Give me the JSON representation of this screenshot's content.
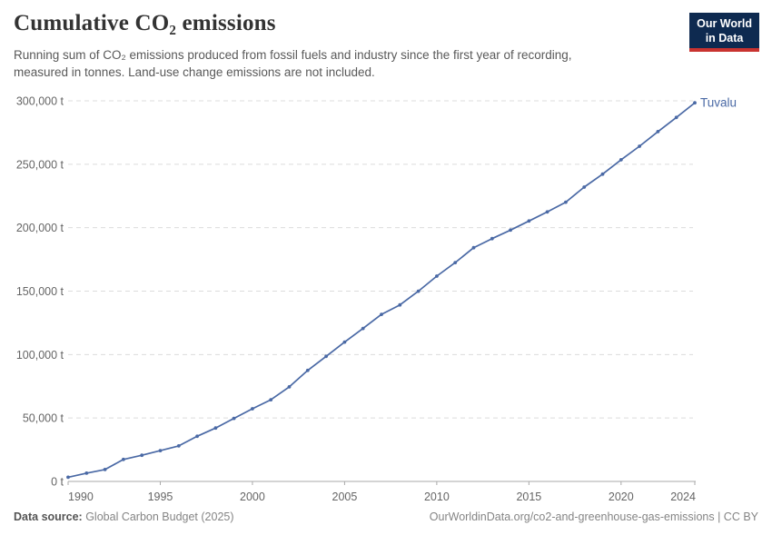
{
  "header": {
    "title": "Cumulative CO₂ emissions",
    "subtitle": "Running sum of CO₂ emissions produced from fossil fuels and industry since the first year of recording,\nmeasured in tonnes. Land-use change emissions are not included."
  },
  "logo": {
    "line1": "Our World",
    "line2": "in Data"
  },
  "chart_data": {
    "type": "line",
    "title": "Cumulative CO₂ emissions",
    "entity": "Tuvalu",
    "unit": "t",
    "xlabel": "",
    "ylabel": "",
    "xlim": [
      1990,
      2024
    ],
    "ylim": [
      0,
      300000
    ],
    "grid": "horizontal-dashed",
    "legend_position": "end-of-line-label",
    "line_color": "#4a69a5",
    "x": [
      1990,
      1991,
      1992,
      1993,
      1994,
      1995,
      1996,
      1997,
      1998,
      1999,
      2000,
      2001,
      2002,
      2003,
      2004,
      2005,
      2006,
      2007,
      2008,
      2009,
      2010,
      2011,
      2012,
      2013,
      2014,
      2015,
      2016,
      2017,
      2018,
      2019,
      2020,
      2021,
      2022,
      2023,
      2024
    ],
    "y": [
      3300,
      6500,
      9400,
      17300,
      20600,
      24300,
      28000,
      35600,
      42100,
      49700,
      57300,
      64400,
      74500,
      87500,
      98600,
      109800,
      120600,
      131700,
      139100,
      149900,
      161800,
      172500,
      184200,
      191400,
      198100,
      205300,
      212400,
      220100,
      232000,
      242200,
      253500,
      264200,
      275700,
      286900,
      298400
    ],
    "y_ticks": [
      {
        "value": 0,
        "label": "0 t"
      },
      {
        "value": 50000,
        "label": "50,000 t"
      },
      {
        "value": 100000,
        "label": "100,000 t"
      },
      {
        "value": 150000,
        "label": "150,000 t"
      },
      {
        "value": 200000,
        "label": "200,000 t"
      },
      {
        "value": 250000,
        "label": "250,000 t"
      },
      {
        "value": 300000,
        "label": "300,000 t"
      }
    ],
    "x_ticks": [
      {
        "value": 1990,
        "label": "1990"
      },
      {
        "value": 1995,
        "label": "1995"
      },
      {
        "value": 2000,
        "label": "2000"
      },
      {
        "value": 2005,
        "label": "2005"
      },
      {
        "value": 2010,
        "label": "2010"
      },
      {
        "value": 2015,
        "label": "2015"
      },
      {
        "value": 2020,
        "label": "2020"
      },
      {
        "value": 2024,
        "label": "2024"
      }
    ]
  },
  "footer": {
    "source_label": "Data source:",
    "source_value": " Global Carbon Budget (2025)",
    "right_text": "OurWorldinData.org/co2-and-greenhouse-gas-emissions | CC BY"
  },
  "colors": {
    "line": "#4a69a5",
    "grid": "#dcdcdc",
    "axis": "#a9a9a9",
    "tick_text": "#656565",
    "logo_bg": "#0e2a50",
    "logo_red": "#c93330"
  }
}
